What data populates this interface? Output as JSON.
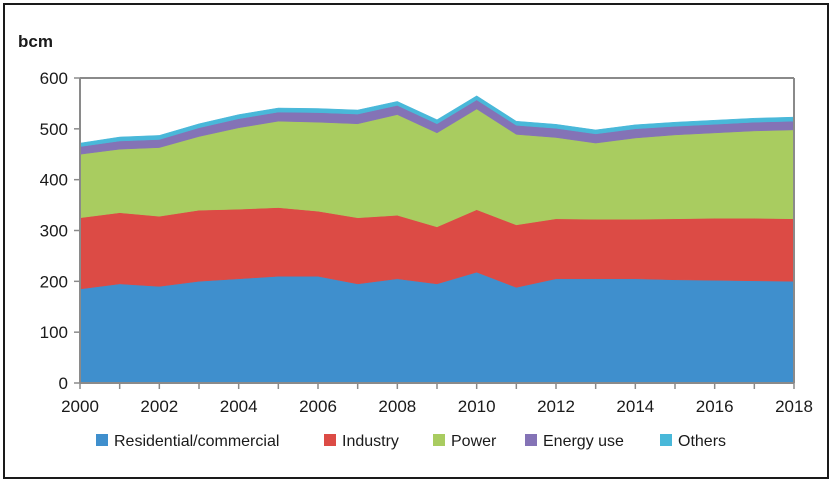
{
  "chart_data": {
    "type": "area",
    "stacked": true,
    "ylabel": "bcm",
    "ylim": [
      0,
      600
    ],
    "yticks": [
      0,
      100,
      200,
      300,
      400,
      500,
      600
    ],
    "xlim": [
      2000,
      2018
    ],
    "xticks": [
      2000,
      2002,
      2004,
      2006,
      2008,
      2010,
      2012,
      2014,
      2016,
      2018
    ],
    "x": [
      2000,
      2001,
      2002,
      2003,
      2004,
      2005,
      2006,
      2007,
      2008,
      2009,
      2010,
      2011,
      2012,
      2013,
      2014,
      2015,
      2016,
      2017,
      2018
    ],
    "series": [
      {
        "name": "Residential/commercial",
        "color": "#3f8fcd",
        "values": [
          185,
          195,
          190,
          200,
          205,
          210,
          210,
          195,
          205,
          195,
          218,
          188,
          205,
          205,
          205,
          203,
          202,
          201,
          200
        ]
      },
      {
        "name": "Industry",
        "color": "#dc4b45",
        "values": [
          140,
          140,
          138,
          140,
          137,
          135,
          128,
          130,
          125,
          112,
          123,
          123,
          118,
          117,
          117,
          120,
          122,
          123,
          123
        ]
      },
      {
        "name": "Power",
        "color": "#a9cc60",
        "values": [
          125,
          125,
          135,
          145,
          160,
          170,
          175,
          185,
          198,
          185,
          198,
          178,
          160,
          150,
          160,
          165,
          168,
          172,
          175
        ]
      },
      {
        "name": "Energy use",
        "color": "#8473b6",
        "values": [
          15,
          16,
          16,
          17,
          18,
          18,
          19,
          19,
          18,
          18,
          18,
          18,
          18,
          18,
          18,
          17,
          17,
          17,
          17
        ]
      },
      {
        "name": "Others",
        "color": "#49b8d9",
        "values": [
          7,
          8,
          8,
          8,
          8,
          8,
          8,
          8,
          8,
          8,
          8,
          8,
          8,
          8,
          8,
          8,
          8,
          8,
          8
        ]
      }
    ],
    "legend": [
      "Residential/commercial",
      "Industry",
      "Power",
      "Energy use",
      "Others"
    ],
    "legend_position": "bottom"
  }
}
